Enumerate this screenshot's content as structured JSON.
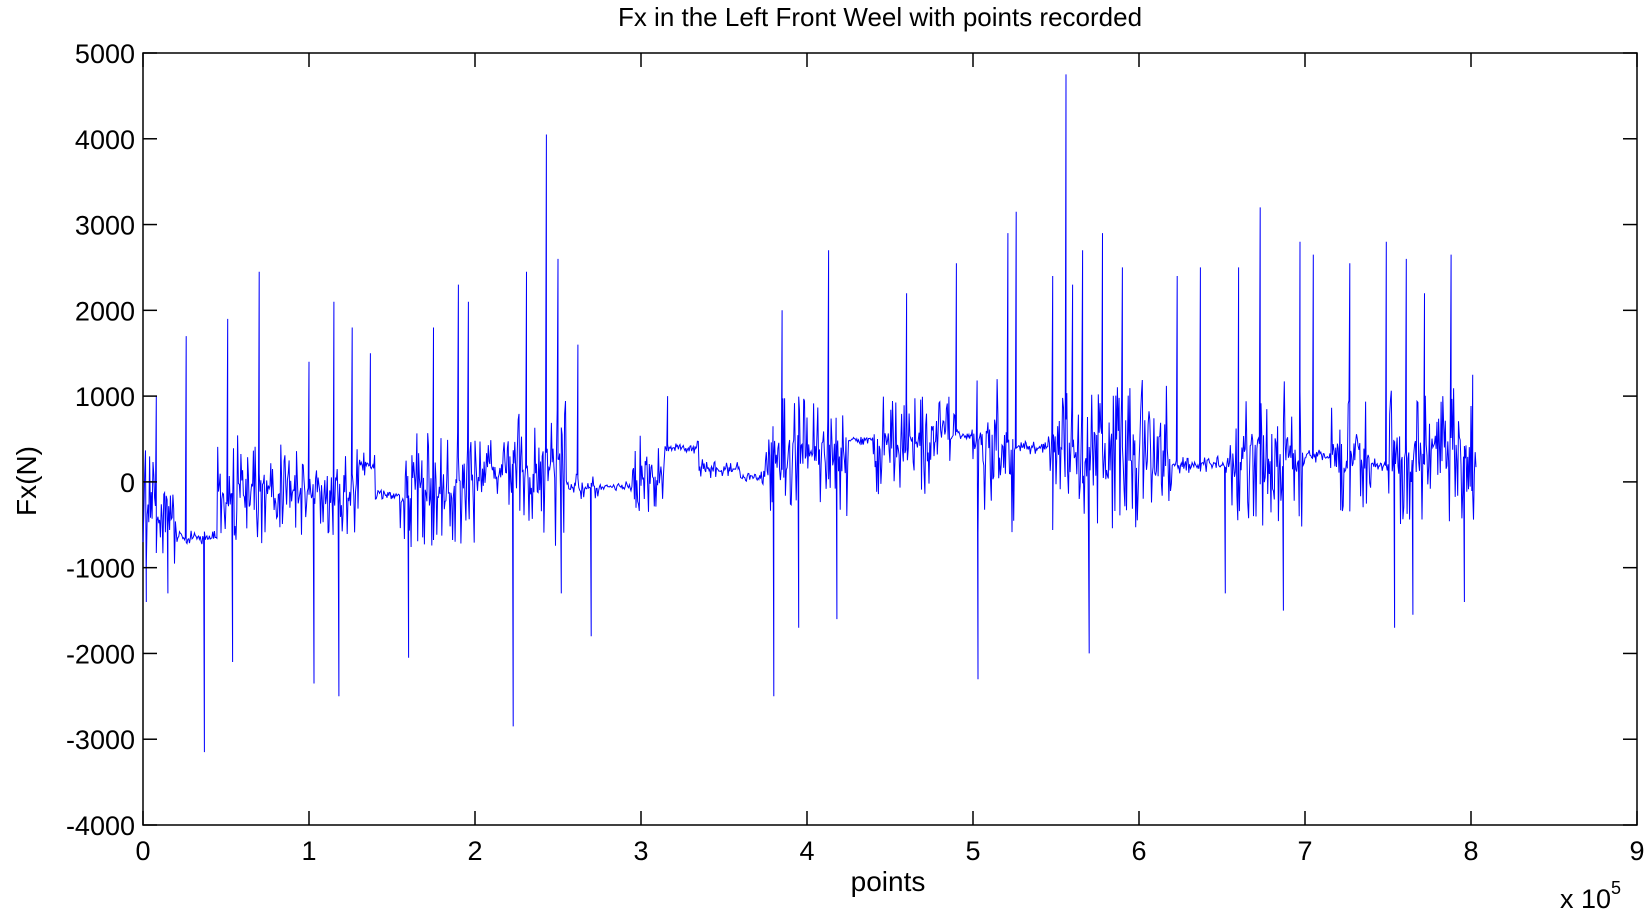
{
  "chart_data": {
    "type": "line",
    "title": "Fx in the Left Front Weel with points recorded",
    "xlabel": "points",
    "ylabel": "Fx(N)",
    "x_multiplier_label": "x 10",
    "x_multiplier_exponent": "5",
    "xlim": [
      0,
      900000
    ],
    "ylim": [
      -4000,
      5000
    ],
    "x_ticks": [
      0,
      1,
      2,
      3,
      4,
      5,
      6,
      7,
      8,
      9
    ],
    "x_tick_scale": 100000,
    "y_ticks": [
      -4000,
      -3000,
      -2000,
      -1000,
      0,
      1000,
      2000,
      3000,
      4000,
      5000
    ],
    "grid": false,
    "legend": "none",
    "line_color": "#0000ff",
    "series": [
      {
        "x_range": [
          0,
          803000
        ],
        "segments": [
          {
            "x": [
              0,
              20000
            ],
            "level": -300,
            "noise": 700
          },
          {
            "x": [
              20000,
              45000
            ],
            "level": -650,
            "noise": 80
          },
          {
            "x": [
              45000,
              75000
            ],
            "level": -100,
            "noise": 700
          },
          {
            "x": [
              75000,
              130000
            ],
            "level": -100,
            "noise": 600
          },
          {
            "x": [
              130000,
              140000
            ],
            "level": 200,
            "noise": 150
          },
          {
            "x": [
              140000,
              155000
            ],
            "level": -150,
            "noise": 60
          },
          {
            "x": [
              155000,
              200000
            ],
            "level": -100,
            "noise": 700
          },
          {
            "x": [
              200000,
              225000
            ],
            "level": 100,
            "noise": 400
          },
          {
            "x": [
              225000,
              255000
            ],
            "level": 150,
            "noise": 900
          },
          {
            "x": [
              255000,
              275000
            ],
            "level": -50,
            "noise": 150
          },
          {
            "x": [
              275000,
              295000
            ],
            "level": -50,
            "noise": 60
          },
          {
            "x": [
              295000,
              315000
            ],
            "level": 100,
            "noise": 500
          },
          {
            "x": [
              315000,
              335000
            ],
            "level": 400,
            "noise": 80
          },
          {
            "x": [
              335000,
              360000
            ],
            "level": 150,
            "noise": 120
          },
          {
            "x": [
              360000,
              375000
            ],
            "level": 50,
            "noise": 80
          },
          {
            "x": [
              375000,
              425000
            ],
            "level": 300,
            "noise": 700
          },
          {
            "x": [
              425000,
              440000
            ],
            "level": 500,
            "noise": 80
          },
          {
            "x": [
              440000,
              475000
            ],
            "level": 400,
            "noise": 600
          },
          {
            "x": [
              475000,
              490000
            ],
            "level": 600,
            "noise": 400
          },
          {
            "x": [
              490000,
              500000
            ],
            "level": 550,
            "noise": 60
          },
          {
            "x": [
              500000,
              525000
            ],
            "level": 300,
            "noise": 900
          },
          {
            "x": [
              525000,
              545000
            ],
            "level": 400,
            "noise": 80
          },
          {
            "x": [
              545000,
              620000
            ],
            "level": 300,
            "noise": 900
          },
          {
            "x": [
              620000,
              655000
            ],
            "level": 200,
            "noise": 100
          },
          {
            "x": [
              655000,
              700000
            ],
            "level": 300,
            "noise": 900
          },
          {
            "x": [
              700000,
              715000
            ],
            "level": 300,
            "noise": 100
          },
          {
            "x": [
              715000,
              740000
            ],
            "level": 300,
            "noise": 700
          },
          {
            "x": [
              740000,
              750000
            ],
            "level": 200,
            "noise": 80
          },
          {
            "x": [
              750000,
              803000
            ],
            "level": 300,
            "noise": 800
          }
        ],
        "spikes": [
          {
            "x": 2000,
            "y": -1400
          },
          {
            "x": 8000,
            "y": 1000
          },
          {
            "x": 15000,
            "y": -1300
          },
          {
            "x": 26000,
            "y": 1700
          },
          {
            "x": 37000,
            "y": -3150
          },
          {
            "x": 51000,
            "y": 1900
          },
          {
            "x": 54000,
            "y": -2100
          },
          {
            "x": 70000,
            "y": 2450
          },
          {
            "x": 100000,
            "y": 1400
          },
          {
            "x": 103000,
            "y": -2350
          },
          {
            "x": 115000,
            "y": 2100
          },
          {
            "x": 118000,
            "y": -2500
          },
          {
            "x": 126000,
            "y": 1800
          },
          {
            "x": 137000,
            "y": 1500
          },
          {
            "x": 160000,
            "y": -2050
          },
          {
            "x": 175000,
            "y": 1800
          },
          {
            "x": 190000,
            "y": 2300
          },
          {
            "x": 196000,
            "y": 2100
          },
          {
            "x": 223000,
            "y": -2850
          },
          {
            "x": 231000,
            "y": 2450
          },
          {
            "x": 243000,
            "y": 4050
          },
          {
            "x": 250000,
            "y": 2600
          },
          {
            "x": 252000,
            "y": -1300
          },
          {
            "x": 262000,
            "y": 1600
          },
          {
            "x": 270000,
            "y": -1800
          },
          {
            "x": 316000,
            "y": 1000
          },
          {
            "x": 380000,
            "y": -2500
          },
          {
            "x": 385000,
            "y": 2000
          },
          {
            "x": 395000,
            "y": -1700
          },
          {
            "x": 413000,
            "y": 2700
          },
          {
            "x": 418000,
            "y": -1600
          },
          {
            "x": 460000,
            "y": 2200
          },
          {
            "x": 490000,
            "y": 2550
          },
          {
            "x": 503000,
            "y": -2300
          },
          {
            "x": 521000,
            "y": 2900
          },
          {
            "x": 526000,
            "y": 3150
          },
          {
            "x": 548000,
            "y": 2400
          },
          {
            "x": 556000,
            "y": 4750
          },
          {
            "x": 560000,
            "y": 2300
          },
          {
            "x": 566000,
            "y": 2700
          },
          {
            "x": 578000,
            "y": 2900
          },
          {
            "x": 590000,
            "y": 2500
          },
          {
            "x": 570000,
            "y": -2000
          },
          {
            "x": 623000,
            "y": 2400
          },
          {
            "x": 637000,
            "y": 2500
          },
          {
            "x": 652000,
            "y": -1300
          },
          {
            "x": 660000,
            "y": 2500
          },
          {
            "x": 673000,
            "y": 3200
          },
          {
            "x": 687000,
            "y": -1500
          },
          {
            "x": 697000,
            "y": 2800
          },
          {
            "x": 705000,
            "y": 2650
          },
          {
            "x": 727000,
            "y": 2550
          },
          {
            "x": 749000,
            "y": 2800
          },
          {
            "x": 754000,
            "y": -1700
          },
          {
            "x": 761000,
            "y": 2600
          },
          {
            "x": 765000,
            "y": -1550
          },
          {
            "x": 772000,
            "y": 2200
          },
          {
            "x": 788000,
            "y": 2650
          },
          {
            "x": 796000,
            "y": -1400
          },
          {
            "x": 801000,
            "y": 1250
          }
        ]
      }
    ]
  }
}
